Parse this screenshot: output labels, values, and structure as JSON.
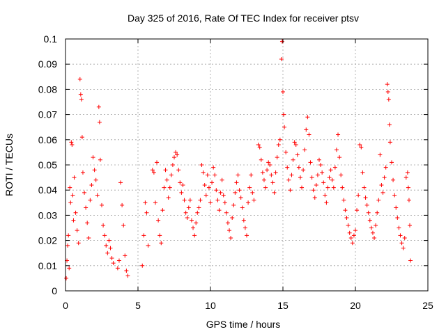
{
  "chart_data": {
    "type": "scatter",
    "title": "Day 325 of 2016, Rate Of TEC Index for receiver ptsv",
    "xlabel": "GPS time / hours",
    "ylabel": "ROTI / TECUs",
    "xlim": [
      0,
      25
    ],
    "ylim": [
      0,
      0.1
    ],
    "x_ticks": [
      0,
      5,
      10,
      15,
      20,
      25
    ],
    "y_ticks": [
      0,
      0.01,
      0.02,
      0.03,
      0.04,
      0.05,
      0.06,
      0.07,
      0.08,
      0.09,
      0.1
    ],
    "x_tick_labels": [
      "0",
      "5",
      "10",
      "15",
      "20",
      "25"
    ],
    "y_tick_labels": [
      "0",
      "0.01",
      "0.02",
      "0.03",
      "0.04",
      "0.05",
      "0.06",
      "0.07",
      "0.08",
      "0.09",
      "0.1"
    ],
    "grid": true,
    "marker": "+",
    "marker_color": "#ff0000",
    "data_gaps_hours": [
      [
        3.4,
        3.5
      ],
      [
        4.4,
        5.2
      ],
      [
        5.8,
        5.95
      ]
    ],
    "series": [
      {
        "points": [
          [
            0.05,
            0.005
          ],
          [
            0.1,
            0.012
          ],
          [
            0.15,
            0.018
          ],
          [
            0.2,
            0.022
          ],
          [
            0.25,
            0.009
          ],
          [
            0.3,
            0.041
          ],
          [
            0.35,
            0.035
          ],
          [
            0.4,
            0.059
          ],
          [
            0.45,
            0.058
          ],
          [
            0.5,
            0.038
          ],
          [
            0.55,
            0.028
          ],
          [
            0.6,
            0.045
          ],
          [
            0.7,
            0.031
          ],
          [
            0.8,
            0.024
          ],
          [
            0.9,
            0.019
          ],
          [
            1.0,
            0.084
          ],
          [
            1.05,
            0.078
          ],
          [
            1.1,
            0.076
          ],
          [
            1.15,
            0.061
          ],
          [
            1.2,
            0.047
          ],
          [
            1.3,
            0.039
          ],
          [
            1.4,
            0.033
          ],
          [
            1.5,
            0.027
          ],
          [
            1.6,
            0.021
          ],
          [
            1.7,
            0.036
          ],
          [
            1.8,
            0.042
          ],
          [
            1.9,
            0.053
          ],
          [
            2.0,
            0.048
          ],
          [
            2.1,
            0.044
          ],
          [
            2.2,
            0.038
          ],
          [
            2.3,
            0.073
          ],
          [
            2.35,
            0.067
          ],
          [
            2.4,
            0.052
          ],
          [
            2.5,
            0.034
          ],
          [
            2.6,
            0.026
          ],
          [
            2.7,
            0.022
          ],
          [
            2.8,
            0.018
          ],
          [
            2.9,
            0.015
          ],
          [
            3.0,
            0.02
          ],
          [
            3.1,
            0.017
          ],
          [
            3.2,
            0.013
          ],
          [
            3.3,
            0.011
          ],
          [
            3.6,
            0.009
          ],
          [
            3.7,
            0.012
          ],
          [
            3.8,
            0.043
          ],
          [
            3.9,
            0.034
          ],
          [
            4.0,
            0.026
          ],
          [
            4.1,
            0.014
          ],
          [
            4.2,
            0.008
          ],
          [
            4.3,
            0.006
          ],
          [
            5.3,
            0.01
          ],
          [
            5.4,
            0.022
          ],
          [
            5.5,
            0.035
          ],
          [
            5.6,
            0.031
          ],
          [
            5.7,
            0.018
          ],
          [
            6.0,
            0.048
          ],
          [
            6.1,
            0.047
          ],
          [
            6.2,
            0.035
          ],
          [
            6.3,
            0.051
          ],
          [
            6.4,
            0.028
          ],
          [
            6.5,
            0.022
          ],
          [
            6.6,
            0.019
          ],
          [
            6.7,
            0.032
          ],
          [
            6.8,
            0.041
          ],
          [
            6.9,
            0.048
          ],
          [
            7.0,
            0.044
          ],
          [
            7.1,
            0.037
          ],
          [
            7.2,
            0.041
          ],
          [
            7.3,
            0.046
          ],
          [
            7.4,
            0.05
          ],
          [
            7.5,
            0.053
          ],
          [
            7.6,
            0.055
          ],
          [
            7.7,
            0.054
          ],
          [
            7.8,
            0.048
          ],
          [
            7.9,
            0.043
          ],
          [
            8.0,
            0.039
          ],
          [
            8.1,
            0.042
          ],
          [
            8.2,
            0.036
          ],
          [
            8.3,
            0.031
          ],
          [
            8.4,
            0.029
          ],
          [
            8.5,
            0.033
          ],
          [
            8.6,
            0.036
          ],
          [
            8.7,
            0.028
          ],
          [
            8.8,
            0.025
          ],
          [
            8.9,
            0.022
          ],
          [
            9.0,
            0.027
          ],
          [
            9.1,
            0.031
          ],
          [
            9.2,
            0.033
          ],
          [
            9.3,
            0.036
          ],
          [
            9.4,
            0.05
          ],
          [
            9.5,
            0.047
          ],
          [
            9.6,
            0.042
          ],
          [
            9.7,
            0.038
          ],
          [
            9.8,
            0.046
          ],
          [
            9.9,
            0.041
          ],
          [
            10.0,
            0.035
          ],
          [
            10.1,
            0.043
          ],
          [
            10.2,
            0.049
          ],
          [
            10.3,
            0.046
          ],
          [
            10.4,
            0.04
          ],
          [
            10.5,
            0.036
          ],
          [
            10.6,
            0.032
          ],
          [
            10.7,
            0.039
          ],
          [
            10.8,
            0.044
          ],
          [
            10.9,
            0.038
          ],
          [
            11.0,
            0.035
          ],
          [
            11.1,
            0.031
          ],
          [
            11.2,
            0.027
          ],
          [
            11.3,
            0.024
          ],
          [
            11.4,
            0.021
          ],
          [
            11.5,
            0.029
          ],
          [
            11.6,
            0.034
          ],
          [
            11.7,
            0.039
          ],
          [
            11.8,
            0.043
          ],
          [
            11.9,
            0.046
          ],
          [
            12.0,
            0.04
          ],
          [
            12.1,
            0.037
          ],
          [
            12.2,
            0.033
          ],
          [
            12.3,
            0.028
          ],
          [
            12.4,
            0.025
          ],
          [
            12.5,
            0.022
          ],
          [
            12.6,
            0.035
          ],
          [
            12.7,
            0.041
          ],
          [
            12.8,
            0.046
          ],
          [
            12.9,
            0.039
          ],
          [
            13.0,
            0.036
          ],
          [
            13.3,
            0.058
          ],
          [
            13.4,
            0.057
          ],
          [
            13.5,
            0.052
          ],
          [
            13.6,
            0.047
          ],
          [
            13.7,
            0.044
          ],
          [
            13.8,
            0.041
          ],
          [
            13.9,
            0.048
          ],
          [
            14.0,
            0.051
          ],
          [
            14.1,
            0.05
          ],
          [
            14.2,
            0.046
          ],
          [
            14.3,
            0.043
          ],
          [
            14.4,
            0.039
          ],
          [
            14.5,
            0.047
          ],
          [
            14.6,
            0.053
          ],
          [
            14.7,
            0.058
          ],
          [
            14.8,
            0.06
          ],
          [
            14.9,
            0.092
          ],
          [
            14.95,
            0.099
          ],
          [
            15.0,
            0.079
          ],
          [
            15.05,
            0.07
          ],
          [
            15.1,
            0.065
          ],
          [
            15.2,
            0.055
          ],
          [
            15.3,
            0.049
          ],
          [
            15.4,
            0.044
          ],
          [
            15.5,
            0.04
          ],
          [
            15.6,
            0.046
          ],
          [
            15.7,
            0.052
          ],
          [
            15.8,
            0.059
          ],
          [
            15.9,
            0.058
          ],
          [
            16.0,
            0.054
          ],
          [
            16.1,
            0.049
          ],
          [
            16.2,
            0.045
          ],
          [
            16.3,
            0.041
          ],
          [
            16.4,
            0.048
          ],
          [
            16.5,
            0.056
          ],
          [
            16.6,
            0.064
          ],
          [
            16.7,
            0.069
          ],
          [
            16.8,
            0.062
          ],
          [
            16.9,
            0.051
          ],
          [
            17.0,
            0.045
          ],
          [
            17.1,
            0.04
          ],
          [
            17.2,
            0.037
          ],
          [
            17.3,
            0.042
          ],
          [
            17.4,
            0.046
          ],
          [
            17.5,
            0.052
          ],
          [
            17.6,
            0.05
          ],
          [
            17.7,
            0.047
          ],
          [
            17.8,
            0.043
          ],
          [
            17.9,
            0.038
          ],
          [
            18.0,
            0.035
          ],
          [
            18.1,
            0.041
          ],
          [
            18.2,
            0.045
          ],
          [
            18.3,
            0.048
          ],
          [
            18.4,
            0.044
          ],
          [
            18.5,
            0.041
          ],
          [
            18.6,
            0.049
          ],
          [
            18.7,
            0.056
          ],
          [
            18.8,
            0.062
          ],
          [
            18.9,
            0.053
          ],
          [
            19.0,
            0.046
          ],
          [
            19.1,
            0.041
          ],
          [
            19.2,
            0.036
          ],
          [
            19.3,
            0.032
          ],
          [
            19.4,
            0.029
          ],
          [
            19.5,
            0.026
          ],
          [
            19.6,
            0.023
          ],
          [
            19.7,
            0.021
          ],
          [
            19.8,
            0.019
          ],
          [
            19.9,
            0.022
          ],
          [
            20.0,
            0.024
          ],
          [
            20.1,
            0.032
          ],
          [
            20.2,
            0.038
          ],
          [
            20.3,
            0.058
          ],
          [
            20.4,
            0.057
          ],
          [
            20.5,
            0.047
          ],
          [
            20.6,
            0.041
          ],
          [
            20.7,
            0.037
          ],
          [
            20.8,
            0.034
          ],
          [
            20.9,
            0.031
          ],
          [
            21.0,
            0.028
          ],
          [
            21.1,
            0.025
          ],
          [
            21.2,
            0.023
          ],
          [
            21.3,
            0.021
          ],
          [
            21.4,
            0.026
          ],
          [
            21.5,
            0.031
          ],
          [
            21.6,
            0.036
          ],
          [
            21.7,
            0.054
          ],
          [
            21.8,
            0.042
          ],
          [
            21.9,
            0.039
          ],
          [
            22.0,
            0.045
          ],
          [
            22.1,
            0.049
          ],
          [
            22.2,
            0.082
          ],
          [
            22.25,
            0.079
          ],
          [
            22.3,
            0.076
          ],
          [
            22.35,
            0.066
          ],
          [
            22.4,
            0.059
          ],
          [
            22.5,
            0.051
          ],
          [
            22.6,
            0.044
          ],
          [
            22.7,
            0.038
          ],
          [
            22.8,
            0.033
          ],
          [
            22.9,
            0.029
          ],
          [
            23.0,
            0.025
          ],
          [
            23.1,
            0.022
          ],
          [
            23.2,
            0.019
          ],
          [
            23.3,
            0.017
          ],
          [
            23.4,
            0.021
          ],
          [
            23.5,
            0.045
          ],
          [
            23.6,
            0.047
          ],
          [
            23.65,
            0.041
          ],
          [
            23.7,
            0.036
          ],
          [
            23.75,
            0.026
          ],
          [
            23.8,
            0.012
          ]
        ]
      }
    ]
  }
}
